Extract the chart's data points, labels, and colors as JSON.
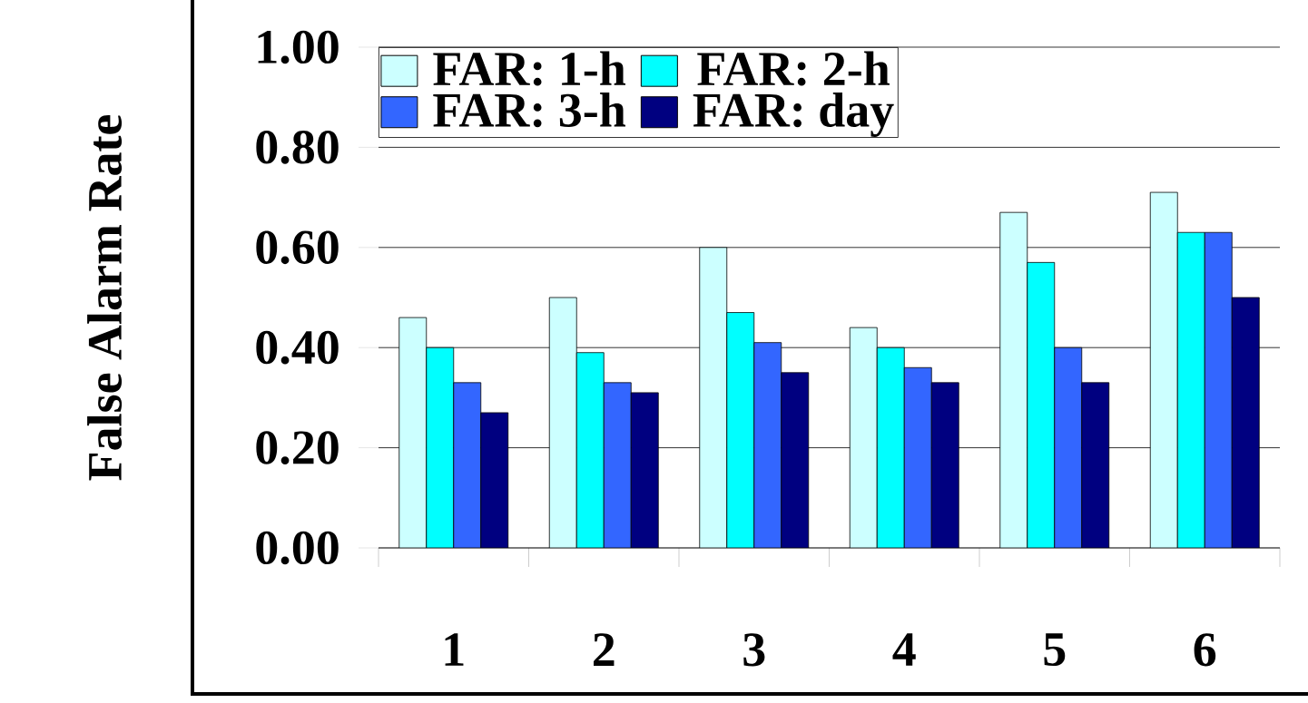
{
  "chart_data": {
    "type": "bar",
    "ylabel": "False Alarm Rate",
    "categories": [
      "1",
      "2",
      "3",
      "4",
      "5",
      "6"
    ],
    "series": [
      {
        "name": "FAR: 1-h",
        "color": "#ccffff",
        "values": [
          0.46,
          0.5,
          0.6,
          0.44,
          0.67,
          0.71
        ]
      },
      {
        "name": "FAR: 2-h",
        "color": "#00ffff",
        "values": [
          0.4,
          0.39,
          0.47,
          0.4,
          0.57,
          0.63
        ]
      },
      {
        "name": "FAR: 3-h",
        "color": "#3366ff",
        "values": [
          0.33,
          0.33,
          0.41,
          0.36,
          0.4,
          0.63
        ]
      },
      {
        "name": "FAR: day",
        "color": "#000080",
        "values": [
          0.27,
          0.31,
          0.35,
          0.33,
          0.33,
          0.5
        ]
      }
    ],
    "ylim": [
      0,
      1
    ],
    "yticks": [
      {
        "value": 0,
        "label": "0.00"
      },
      {
        "value": 0.2,
        "label": "0.20"
      },
      {
        "value": 0.4,
        "label": "0.40"
      },
      {
        "value": 0.6,
        "label": "0.60"
      },
      {
        "value": 0.8,
        "label": "0.80"
      },
      {
        "value": 1,
        "label": "1.00"
      }
    ],
    "grid": "y",
    "legend": "top left"
  }
}
